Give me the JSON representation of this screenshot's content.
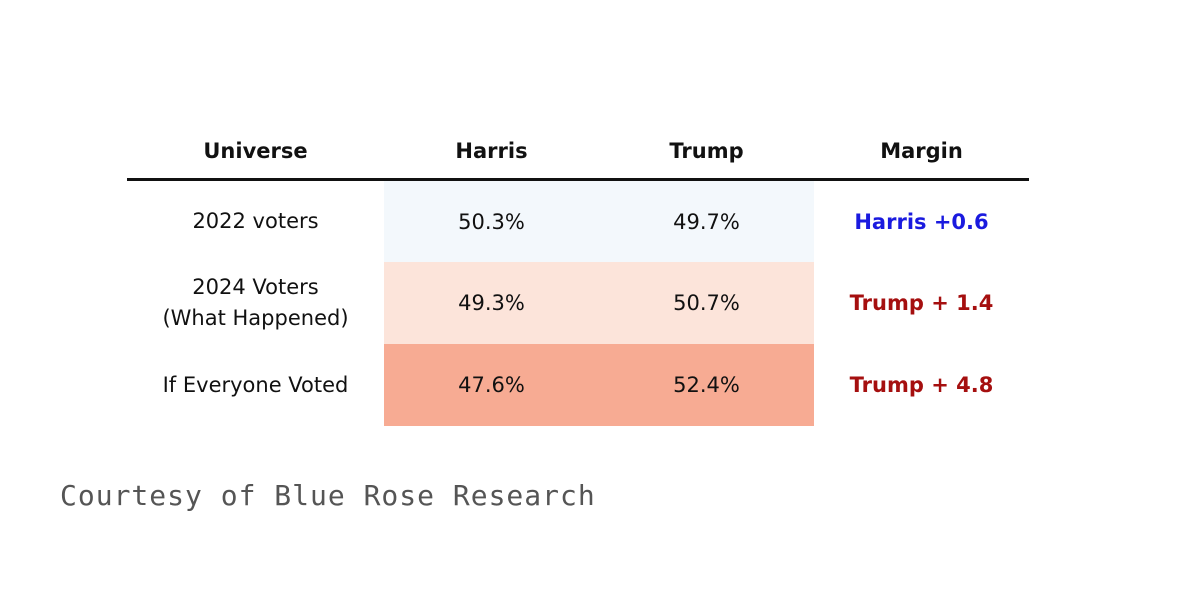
{
  "chart_data": {
    "type": "table",
    "columns": [
      "Universe",
      "Harris",
      "Trump",
      "Margin"
    ],
    "rows": [
      {
        "universe": [
          "2022 voters"
        ],
        "harris": "50.3%",
        "trump": "49.7%",
        "margin": "Harris +0.6",
        "harris_value": 50.3,
        "trump_value": 49.7,
        "margin_color": "#1a1adf",
        "shade_color": "#f3f8fc"
      },
      {
        "universe": [
          "2024 Voters",
          "(What Happened)"
        ],
        "harris": "49.3%",
        "trump": "50.7%",
        "margin": "Trump + 1.4",
        "harris_value": 49.3,
        "trump_value": 50.7,
        "margin_color": "#a50f0f",
        "shade_color": "#fce4da"
      },
      {
        "universe": [
          "If Everyone Voted"
        ],
        "harris": "47.6%",
        "trump": "52.4%",
        "margin": "Trump + 4.8",
        "harris_value": 47.6,
        "trump_value": 52.4,
        "margin_color": "#a50f0f",
        "shade_color": "#f7ab93"
      }
    ]
  },
  "footer": {
    "credit": "Courtesy of Blue Rose Research"
  }
}
